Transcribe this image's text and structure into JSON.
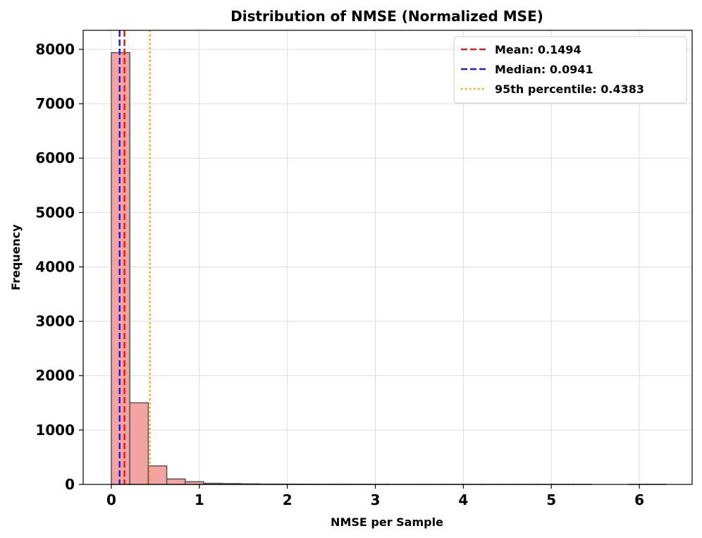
{
  "chart_data": {
    "type": "bar",
    "title": "Distribution of NMSE (Normalized MSE)",
    "xlabel": "NMSE per Sample",
    "ylabel": "Frequency",
    "xlim": [
      -0.32,
      6.6
    ],
    "ylim": [
      0,
      8350
    ],
    "xticks": [
      0,
      1,
      2,
      3,
      4,
      5,
      6
    ],
    "yticks": [
      0,
      1000,
      2000,
      3000,
      4000,
      5000,
      6000,
      7000,
      8000
    ],
    "grid": true,
    "bin_edges": [
      0.0,
      0.21,
      0.42,
      0.63,
      0.84,
      1.05,
      1.26,
      1.47,
      1.68,
      1.89,
      2.1,
      2.31,
      2.52,
      2.73,
      2.94,
      3.15,
      3.36,
      3.57,
      3.78,
      3.99,
      4.2,
      4.41,
      4.62,
      4.83,
      5.04,
      5.25,
      5.46,
      5.67,
      5.88,
      6.09,
      6.3
    ],
    "counts": [
      7940,
      1500,
      340,
      100,
      50,
      20,
      15,
      10,
      6,
      5,
      4,
      3,
      3,
      2,
      2,
      1,
      1,
      1,
      1,
      1,
      1,
      1,
      1,
      1,
      1,
      1,
      0,
      0,
      1,
      1
    ],
    "bar_color": "#f4a3a3",
    "bar_edge_color": "#555555",
    "reference_lines": [
      {
        "name": "Mean: 0.1494",
        "value": 0.1494,
        "color": "#e41a1c",
        "style": "dashed"
      },
      {
        "name": "Median: 0.0941",
        "value": 0.0941,
        "color": "#1f1fe0",
        "style": "dashed"
      },
      {
        "name": "95th percentile: 0.4383",
        "value": 0.4383,
        "color": "#ffa500",
        "style": "dotted"
      }
    ],
    "legend_position": "top-right"
  }
}
